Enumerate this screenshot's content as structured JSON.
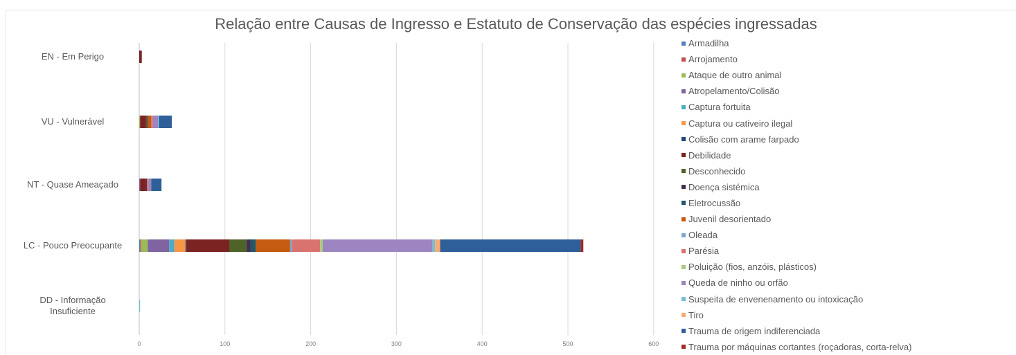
{
  "chart_data": {
    "type": "bar",
    "orientation": "horizontal",
    "stacked": true,
    "title": "Relação entre Causas de Ingresso e Estatuto de Conservação das espécies ingressadas",
    "xlabel": "",
    "ylabel": "",
    "xlim": [
      0,
      600
    ],
    "x_ticks": [
      "0",
      "100",
      "200",
      "300",
      "400",
      "500",
      "600"
    ],
    "grid": "vertical",
    "legend_position": "right",
    "categories": [
      "EN - Em Perigo",
      "VU - Vulnerável",
      "NT - Quase Ameaçado",
      "LC - Pouco Preocupante",
      "DD - Informação\nInsuficiente"
    ],
    "series": [
      {
        "name": "Armadilha",
        "color": "#4f81bd",
        "values": [
          0,
          0,
          0,
          1,
          0
        ]
      },
      {
        "name": "Arrojamento",
        "color": "#c0504d",
        "values": [
          0,
          0,
          0,
          1,
          0
        ]
      },
      {
        "name": "Ataque de outro animal",
        "color": "#9bbb59",
        "values": [
          0,
          1,
          0,
          8,
          0
        ]
      },
      {
        "name": "Atropelamento/Colisão",
        "color": "#8064a2",
        "values": [
          0,
          0,
          1,
          25,
          0
        ]
      },
      {
        "name": "Captura fortuita",
        "color": "#4bacc6",
        "values": [
          0,
          0,
          0,
          6,
          0
        ]
      },
      {
        "name": "Captura ou cativeiro ilegal",
        "color": "#f79646",
        "values": [
          0,
          0,
          0,
          13,
          0
        ]
      },
      {
        "name": "Colisão com arame farpado",
        "color": "#1f497d",
        "values": [
          0,
          0,
          0,
          1,
          0
        ]
      },
      {
        "name": "Debilidade",
        "color": "#7b2222",
        "values": [
          3,
          7,
          7,
          50,
          0
        ]
      },
      {
        "name": "Desconhecido",
        "color": "#4f6228",
        "values": [
          0,
          1,
          0,
          20,
          0
        ]
      },
      {
        "name": "Doença sistémica",
        "color": "#403152",
        "values": [
          0,
          1,
          1,
          5,
          0
        ]
      },
      {
        "name": "Eletrocussão",
        "color": "#205867",
        "values": [
          0,
          0,
          0,
          6,
          0
        ]
      },
      {
        "name": "Juvenil desorientado",
        "color": "#c55a11",
        "values": [
          0,
          4,
          0,
          40,
          0
        ]
      },
      {
        "name": "Oleada",
        "color": "#7ea6d1",
        "values": [
          0,
          0,
          0,
          2,
          0
        ]
      },
      {
        "name": "Parésia",
        "color": "#d9736f",
        "values": [
          0,
          2,
          2,
          33,
          0
        ]
      },
      {
        "name": "Poluição (fios, anzóis, plásticos)",
        "color": "#aec97f",
        "values": [
          0,
          0,
          0,
          3,
          0
        ]
      },
      {
        "name": "Queda de ninho ou orfão",
        "color": "#9c85c0",
        "values": [
          0,
          6,
          3,
          128,
          0
        ]
      },
      {
        "name": "Suspeita de envenenamento ou intoxicação",
        "color": "#75bfd4",
        "values": [
          0,
          1,
          0,
          3,
          1
        ]
      },
      {
        "name": "Tiro",
        "color": "#f9ab74",
        "values": [
          0,
          0,
          0,
          6,
          0
        ]
      },
      {
        "name": "Trauma de origem indiferenciada",
        "color": "#2e5f99",
        "values": [
          0,
          15,
          12,
          164,
          0
        ]
      },
      {
        "name": "Trauma por máquinas cortantes (roçadoras, corta-relva)",
        "color": "#a32a26",
        "values": [
          0,
          0,
          0,
          3,
          0
        ]
      }
    ]
  }
}
